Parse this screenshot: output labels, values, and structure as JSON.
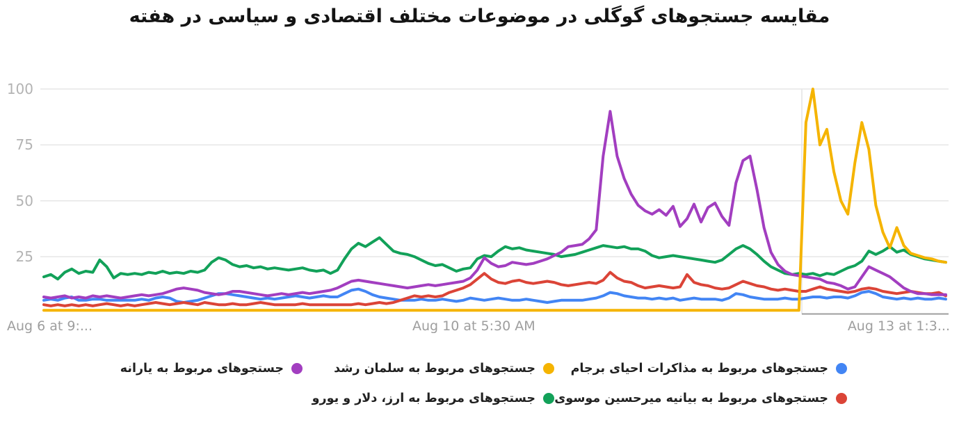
{
  "title": "مقایسه جستجوهای گوگلی در موضوعات مختلف اقتصادی و سیاسی در هفته",
  "colors": {
    "green": "#12a159",
    "blue": "#4285f4",
    "red": "#db4437",
    "purple": "#a23ec0",
    "yellow": "#f5b400",
    "gridline": "#e6e6e6",
    "marker_line": "#e3e3e3",
    "baseline": "#9e9e9e",
    "axis_text": "#9e9e9e",
    "tick_text": "#b3b3b3",
    "title_text": "#141414"
  },
  "x_axis": {
    "start_label": "Aug 6 at 9:...",
    "middle_label": "Aug 10 at 5:30 AM",
    "end_label": "Aug 13 at 1:3..."
  },
  "chart_data": {
    "type": "line",
    "title": "مقایسه جستجوهای گوگلی در موضوعات مختلف اقتصادی و سیاسی در هفته",
    "ylim": [
      0,
      100
    ],
    "y_ticks": [
      25,
      50,
      75,
      100
    ],
    "grid": "horizontal",
    "legend_position": "bottom",
    "x_axis_labels": [
      "Aug 6 at 9:...",
      "Aug 10 at 5:30 AM",
      "Aug 13 at 1:3..."
    ],
    "series": [
      {
        "name": "جستجوهای مربوط به ارز، دلار و یورو",
        "color_key": "green",
        "values": [
          16,
          17,
          15,
          18,
          19.5,
          17.5,
          18.5,
          18,
          23.5,
          20.5,
          15.5,
          17.5,
          17,
          17.5,
          17,
          18,
          17.5,
          18.5,
          17.5,
          18,
          17.5,
          18.5,
          18,
          19,
          22.5,
          24.5,
          23.5,
          21.5,
          20.5,
          21,
          20,
          20.5,
          19.5,
          20,
          19.5,
          19,
          19.5,
          20,
          19,
          18.5,
          19,
          17.5,
          19,
          24,
          28.5,
          31,
          29.5,
          31.5,
          33.5,
          30.5,
          27.5,
          26.5,
          26,
          25,
          23.5,
          22,
          21,
          21.5,
          20,
          18.5,
          19.5,
          20,
          24,
          25.5,
          25,
          27.5,
          29.5,
          28.5,
          29,
          28,
          27.5,
          27,
          26.5,
          26,
          25,
          25.5,
          26,
          27,
          28,
          29,
          30,
          29.5,
          29,
          29.5,
          28.5,
          28.5,
          27.5,
          25.5,
          24.5,
          25,
          25.5,
          25,
          24.5,
          24,
          23.5,
          23,
          22.5,
          23.5,
          26,
          28.5,
          30,
          28.5,
          26,
          23,
          20.5,
          19,
          17.5,
          17,
          17.5,
          17,
          17.5,
          16.5,
          17.5,
          17,
          18.5,
          20,
          21,
          23,
          27.5,
          26,
          27.5,
          29.5,
          27,
          28,
          26,
          25,
          24,
          23.5,
          23,
          22.5
        ]
      },
      {
        "name": "جستجوهای مربوط به مذاکرات احیای برجام",
        "color_key": "blue",
        "values": [
          5.5,
          6,
          5.5,
          6.5,
          7,
          5.5,
          5.5,
          6,
          6,
          5.5,
          5.5,
          5.5,
          5.5,
          5.5,
          6,
          5.5,
          6.5,
          7,
          6.5,
          5,
          4.5,
          5,
          5.5,
          6.5,
          7.5,
          8.5,
          8.5,
          8,
          7.5,
          7,
          6.5,
          6,
          6.5,
          6,
          6.5,
          7,
          7.5,
          7,
          6.5,
          7,
          7.5,
          7,
          7,
          8.5,
          10,
          10.5,
          9.5,
          8,
          7,
          6.5,
          6,
          5.5,
          5.5,
          5.5,
          6,
          5.5,
          5.5,
          6,
          5.5,
          5,
          5.5,
          6.5,
          6,
          5.5,
          6,
          6.5,
          6,
          5.5,
          5.5,
          6,
          5.5,
          5,
          4.5,
          5,
          5.5,
          5.5,
          5.5,
          5.5,
          6,
          6.5,
          7.5,
          9,
          8.5,
          7.5,
          7,
          6.5,
          6.5,
          6,
          6.5,
          6,
          6.5,
          5.5,
          6,
          6.5,
          6,
          6,
          6,
          5.5,
          6.5,
          8.5,
          8,
          7,
          6.5,
          6,
          6,
          6,
          6.5,
          6,
          6,
          6.5,
          7,
          7,
          6.5,
          7,
          7,
          6.5,
          7.5,
          9,
          9.5,
          8.5,
          7,
          6.5,
          6,
          6.5,
          6,
          6.5,
          6,
          6,
          6.5,
          6
        ]
      },
      {
        "name": "جستجوهای مربوط به بیانیه میرحسین موسوی",
        "color_key": "red",
        "values": [
          3.5,
          3,
          3.5,
          3,
          3.5,
          3,
          3.5,
          3,
          3.5,
          4,
          3.5,
          3,
          3.5,
          3,
          3.5,
          4,
          4.5,
          4,
          3.5,
          4,
          4.5,
          4,
          3.5,
          4.5,
          4,
          3.5,
          3.5,
          4,
          3.5,
          3.5,
          4,
          4.5,
          4,
          3.5,
          3.5,
          3.5,
          3.5,
          4,
          3.5,
          3.5,
          3.5,
          3.5,
          3.5,
          3.5,
          3.5,
          4,
          3.5,
          4,
          4.5,
          4,
          4.5,
          5.5,
          6.5,
          7.5,
          7,
          7.5,
          7,
          7.5,
          9,
          10,
          11,
          12.5,
          15,
          17.5,
          15,
          13.5,
          13,
          14,
          14.5,
          13.5,
          13,
          13.5,
          14,
          13.5,
          12.5,
          12,
          12.5,
          13,
          13.5,
          13,
          14.5,
          18,
          15.5,
          14,
          13.5,
          12,
          11,
          11.5,
          12,
          11.5,
          11,
          11.5,
          17,
          13.5,
          12.5,
          12,
          11,
          10.5,
          11,
          12.5,
          14,
          13,
          12,
          11.5,
          10.5,
          10,
          10.5,
          10,
          9.5,
          9.5,
          10.5,
          11.5,
          10.5,
          10,
          9.5,
          9,
          9.5,
          10.5,
          11,
          10.5,
          9.5,
          9,
          8.5,
          9,
          9.5,
          9,
          8.5,
          8.5,
          9,
          7.5
        ]
      },
      {
        "name": "جستجوهای مربوط به یارانه",
        "color_key": "purple",
        "values": [
          7,
          6.5,
          7,
          7.5,
          6.5,
          7,
          6.5,
          7.5,
          7,
          7.5,
          7,
          6.5,
          7,
          7.5,
          8,
          7.5,
          8,
          8.5,
          9.5,
          10.5,
          11,
          10.5,
          10,
          9,
          8.5,
          8,
          8.5,
          9.5,
          9.5,
          9,
          8.5,
          8,
          7.5,
          8,
          8.5,
          8,
          8.5,
          9,
          8.5,
          9,
          9.5,
          10,
          11,
          12.5,
          14,
          14.5,
          14,
          13.5,
          13,
          12.5,
          12,
          11.5,
          11,
          11.5,
          12,
          12.5,
          12,
          12.5,
          13,
          13.5,
          14,
          15.5,
          19,
          24.5,
          22,
          20.5,
          21,
          22.5,
          22,
          21.5,
          22,
          23,
          24,
          25.5,
          27,
          29.5,
          30,
          30.5,
          33,
          37,
          70,
          90,
          70,
          60,
          53,
          48,
          45.5,
          44,
          46,
          43.5,
          47.5,
          38.5,
          42,
          48.5,
          40.5,
          47,
          49,
          43,
          39,
          58,
          68,
          70,
          55,
          38,
          27,
          21.5,
          18.5,
          17,
          16.5,
          16,
          15.5,
          15,
          13.5,
          13,
          12,
          10.5,
          11.5,
          16,
          20.5,
          19,
          17.5,
          16,
          13.5,
          11,
          9.5,
          8.5,
          8.5,
          8,
          8,
          8
        ]
      },
      {
        "name": "جستجوهای مربوط به سلمان رشد",
        "color_key": "yellow",
        "values": [
          1,
          1,
          1,
          1,
          1,
          1,
          1,
          1,
          1,
          1,
          1,
          1,
          1,
          1,
          1,
          1,
          1,
          1,
          1,
          1,
          1,
          1,
          1,
          1,
          1,
          1,
          1,
          1,
          1,
          1,
          1,
          1,
          1,
          1,
          1,
          1,
          1,
          1,
          1,
          1,
          1,
          1,
          1,
          1,
          1,
          1,
          1,
          1,
          1,
          1,
          1,
          1,
          1,
          1,
          1,
          1,
          1,
          1,
          1,
          1,
          1,
          1,
          1,
          1,
          1,
          1,
          1,
          1,
          1,
          1,
          1,
          1,
          1,
          1,
          1,
          1,
          1,
          1,
          1,
          1,
          1,
          1,
          1,
          1,
          1,
          1,
          1,
          1,
          1,
          1,
          1,
          1,
          1,
          1,
          1,
          1,
          1,
          1,
          1,
          1,
          1,
          1,
          1,
          1,
          1,
          1,
          1,
          1,
          1,
          85,
          100,
          75,
          82,
          63,
          50,
          44,
          67,
          85,
          73,
          48,
          36,
          29,
          38,
          30,
          26.5,
          25.5,
          24.5,
          24,
          23,
          22.5
        ]
      }
    ]
  }
}
